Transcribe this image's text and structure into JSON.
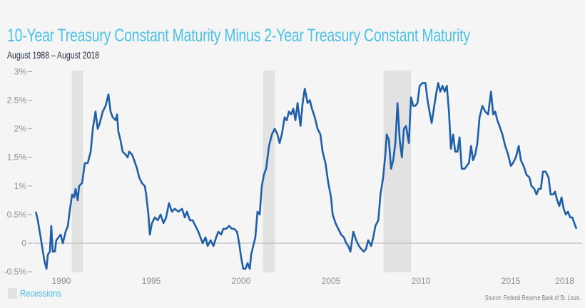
{
  "chart_data": {
    "type": "line",
    "title": "10-Year Treasury Constant Maturity Minus 2-Year Treasury Constant Maturity",
    "subtitle": "August 1988 – August 2018",
    "xlabel": "",
    "ylabel": "",
    "xlim": [
      1988.3,
      2018.9
    ],
    "ylim": [
      -0.5,
      3
    ],
    "x_ticks": [
      {
        "value": 1990,
        "label": "1990"
      },
      {
        "value": 1995,
        "label": "1995"
      },
      {
        "value": 2000,
        "label": "2000"
      },
      {
        "value": 2005,
        "label": "2005"
      },
      {
        "value": 2010,
        "label": "2010"
      },
      {
        "value": 2015,
        "label": "2015"
      },
      {
        "value": 2018,
        "label": "2018"
      }
    ],
    "y_ticks": [
      {
        "value": 3,
        "label": "3%"
      },
      {
        "value": 2.5,
        "label": "2.5%"
      },
      {
        "value": 2,
        "label": "2%"
      },
      {
        "value": 1.5,
        "label": "1.5%"
      },
      {
        "value": 1,
        "label": "1%"
      },
      {
        "value": 0.5,
        "label": "0.5%"
      },
      {
        "value": 0,
        "label": "0"
      },
      {
        "value": -0.5,
        "label": "-0.5%"
      }
    ],
    "grid": false,
    "line_color": "#1f5fa8",
    "recession_color": "#e1e2e1",
    "recessions": [
      [
        1990.58,
        1991.21
      ],
      [
        2001.21,
        2001.87
      ],
      [
        2007.92,
        2009.46
      ]
    ],
    "legend": {
      "label": "Recessions",
      "placement": "bottom-left"
    },
    "source": "Source: Federal Reserve Bank of St. Louis.",
    "series": [
      {
        "x": [
          1988.58,
          1988.69,
          1988.85,
          1989.05,
          1989.17,
          1989.25,
          1989.36,
          1989.44,
          1989.52,
          1989.64,
          1989.72,
          1989.84,
          1989.96,
          1990.08,
          1990.24,
          1990.36,
          1990.48,
          1990.6,
          1990.71,
          1990.79,
          1990.91,
          1990.99,
          1991.15,
          1991.31,
          1991.47,
          1991.63,
          1991.75,
          1991.9,
          1992.02,
          1992.14,
          1992.3,
          1992.46,
          1992.62,
          1992.74,
          1992.86,
          1993.02,
          1993.1,
          1993.17,
          1993.29,
          1993.41,
          1993.57,
          1993.69,
          1993.77,
          1993.93,
          1994.05,
          1994.21,
          1994.33,
          1994.48,
          1994.64,
          1994.72,
          1994.84,
          1994.92,
          1995.04,
          1995.2,
          1995.36,
          1995.52,
          1995.68,
          1995.83,
          1995.99,
          1996.15,
          1996.31,
          1996.51,
          1996.71,
          1996.87,
          1996.99,
          1997.15,
          1997.3,
          1997.46,
          1997.62,
          1997.74,
          1997.86,
          1998.02,
          1998.14,
          1998.3,
          1998.46,
          1998.61,
          1998.73,
          1998.89,
          1999.01,
          1999.17,
          1999.33,
          1999.49,
          1999.61,
          1999.77,
          1999.89,
          2000.0,
          2000.12,
          2000.24,
          2000.36,
          2000.48,
          2000.56,
          2000.67,
          2000.79,
          2000.91,
          2001.03,
          2001.15,
          2001.27,
          2001.39,
          2001.55,
          2001.71,
          2001.87,
          2002.02,
          2002.14,
          2002.26,
          2002.42,
          2002.54,
          2002.66,
          2002.78,
          2002.9,
          2003.02,
          2003.14,
          2003.3,
          2003.42,
          2003.54,
          2003.7,
          2003.82,
          2003.94,
          2004.1,
          2004.25,
          2004.41,
          2004.53,
          2004.69,
          2004.85,
          2005.0,
          2005.09,
          2005.25,
          2005.4,
          2005.56,
          2005.72,
          2005.84,
          2005.96,
          2006.08,
          2006.24,
          2006.4,
          2006.55,
          2006.67,
          2006.83,
          2006.95,
          2007.07,
          2007.23,
          2007.35,
          2007.47,
          2007.63,
          2007.75,
          2007.9,
          2008.02,
          2008.1,
          2008.22,
          2008.34,
          2008.46,
          2008.58,
          2008.7,
          2008.82,
          2008.94,
          2009.05,
          2009.17,
          2009.33,
          2009.45,
          2009.57,
          2009.69,
          2009.81,
          2009.93,
          2010.09,
          2010.25,
          2010.37,
          2010.48,
          2010.6,
          2010.72,
          2010.84,
          2010.96,
          2011.08,
          2011.2,
          2011.32,
          2011.44,
          2011.56,
          2011.67,
          2011.79,
          2011.91,
          2012.03,
          2012.15,
          2012.27,
          2012.43,
          2012.55,
          2012.67,
          2012.79,
          2012.9,
          2013.02,
          2013.14,
          2013.26,
          2013.42,
          2013.58,
          2013.74,
          2013.9,
          2014.02,
          2014.13,
          2014.25,
          2014.37,
          2014.53,
          2014.69,
          2014.85,
          2015.0,
          2015.12,
          2015.28,
          2015.44,
          2015.56,
          2015.71,
          2015.87,
          2016.03,
          2016.15,
          2016.31,
          2016.43,
          2016.55,
          2016.67,
          2016.79,
          2016.94,
          2017.1,
          2017.22,
          2017.34,
          2017.46,
          2017.58,
          2017.7,
          2017.82,
          2017.94,
          2018.06,
          2018.18,
          2018.3,
          2018.42,
          2018.53,
          2018.65
        ],
        "y": [
          0.55,
          0.4,
          0.1,
          -0.3,
          -0.45,
          -0.2,
          -0.15,
          0.3,
          -0.15,
          -0.15,
          0.05,
          0.1,
          0.15,
          0.0,
          0.2,
          0.3,
          0.6,
          0.85,
          0.8,
          0.95,
          0.75,
          1.0,
          1.05,
          1.4,
          1.4,
          1.6,
          2.0,
          2.3,
          2.0,
          2.1,
          2.3,
          2.4,
          2.6,
          2.3,
          2.2,
          2.15,
          2.25,
          1.95,
          1.8,
          1.6,
          1.55,
          1.5,
          1.6,
          1.55,
          1.45,
          1.3,
          1.15,
          1.05,
          1.0,
          0.85,
          0.5,
          0.15,
          0.35,
          0.45,
          0.4,
          0.5,
          0.35,
          0.45,
          0.7,
          0.55,
          0.6,
          0.55,
          0.6,
          0.45,
          0.55,
          0.4,
          0.4,
          0.3,
          0.2,
          0.1,
          0.0,
          0.1,
          -0.05,
          0.05,
          -0.05,
          0.1,
          0.2,
          0.15,
          0.25,
          0.25,
          0.3,
          0.25,
          0.25,
          0.2,
          0.0,
          -0.25,
          -0.45,
          -0.45,
          -0.35,
          -0.45,
          -0.2,
          -0.05,
          0.1,
          0.55,
          0.5,
          1.0,
          1.2,
          1.3,
          1.7,
          1.9,
          2.0,
          1.9,
          1.75,
          1.9,
          2.2,
          2.15,
          2.3,
          2.25,
          2.35,
          2.15,
          2.45,
          2.05,
          2.45,
          2.7,
          2.45,
          2.5,
          2.35,
          2.2,
          2.0,
          1.9,
          1.6,
          1.4,
          1.05,
          0.8,
          0.5,
          0.35,
          0.25,
          0.15,
          0.1,
          0.0,
          -0.05,
          -0.15,
          0.2,
          0.05,
          -0.05,
          -0.1,
          -0.15,
          -0.1,
          0.05,
          -0.05,
          0.1,
          0.3,
          0.4,
          0.85,
          1.15,
          1.55,
          1.9,
          1.8,
          1.3,
          1.45,
          1.75,
          2.45,
          1.8,
          1.5,
          2.0,
          2.05,
          1.75,
          2.55,
          2.4,
          2.4,
          2.45,
          2.75,
          2.8,
          2.8,
          2.5,
          2.3,
          2.1,
          2.35,
          2.6,
          2.8,
          2.65,
          2.75,
          2.65,
          2.75,
          2.3,
          1.65,
          1.9,
          1.6,
          1.6,
          1.85,
          1.3,
          1.3,
          1.35,
          1.4,
          1.7,
          1.45,
          1.55,
          1.75,
          2.2,
          2.4,
          2.3,
          2.25,
          2.65,
          2.25,
          2.3,
          2.15,
          2.05,
          1.9,
          1.7,
          1.55,
          1.35,
          1.4,
          1.5,
          1.7,
          1.45,
          1.35,
          1.2,
          1.15,
          1.0,
          0.95,
          0.85,
          0.95,
          0.95,
          1.25,
          1.25,
          1.15,
          0.85,
          0.85,
          0.9,
          0.75,
          0.65,
          0.8,
          0.6,
          0.5,
          0.55,
          0.45,
          0.45,
          0.35,
          0.25
        ]
      }
    ]
  }
}
